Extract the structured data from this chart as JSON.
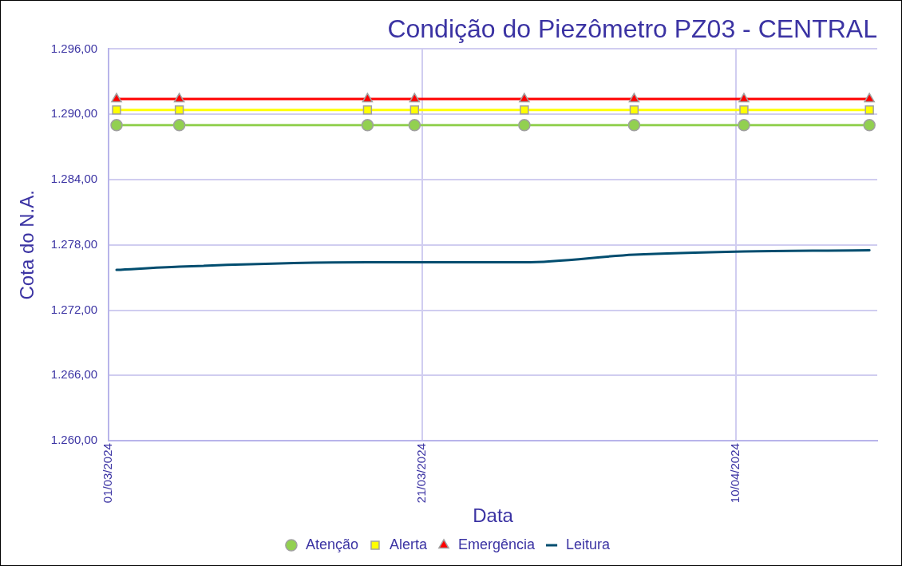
{
  "chart_data": {
    "type": "line",
    "title": "Condição do Piezômetro PZ03 - CENTRAL",
    "xlabel": "Data",
    "ylabel": "Cota do N.A.",
    "x": [
      "2024-03-01T12:00",
      "2024-03-05T12:00",
      "2024-03-17T12:00",
      "2024-03-20T12:00",
      "2024-03-27T12:00",
      "2024-04-03T12:00",
      "2024-04-10T12:00",
      "2024-04-18T12:00"
    ],
    "series": [
      {
        "name": "Atenção",
        "color": "#92d050",
        "marker": "circle",
        "values": [
          1289.0,
          1289.0,
          1289.0,
          1289.0,
          1289.0,
          1289.0,
          1289.0,
          1289.0
        ]
      },
      {
        "name": "Alerta",
        "color": "#ffff00",
        "marker": "square",
        "values": [
          1290.4,
          1290.4,
          1290.4,
          1290.4,
          1290.4,
          1290.4,
          1290.4,
          1290.4
        ]
      },
      {
        "name": "Emergência",
        "color": "#ff0000",
        "marker": "triangle",
        "values": [
          1291.4,
          1291.4,
          1291.4,
          1291.4,
          1291.4,
          1291.4,
          1291.4,
          1291.4
        ]
      },
      {
        "name": "Leitura",
        "color": "#004d6f",
        "marker": "none",
        "values": [
          1275.7,
          1276.0,
          1276.4,
          1276.4,
          1276.4,
          1277.1,
          1277.4,
          1277.5
        ]
      }
    ],
    "xlim": [
      "2024-03-01",
      "2024-04-19"
    ],
    "xticks": [
      {
        "value": "2024-03-01",
        "label": "01/03/2024"
      },
      {
        "value": "2024-03-21",
        "label": "21/03/2024"
      },
      {
        "value": "2024-04-10",
        "label": "10/04/2024"
      }
    ],
    "ylim": [
      1260,
      1296
    ],
    "yticks": [
      {
        "value": 1260,
        "label": "1.260,00"
      },
      {
        "value": 1266,
        "label": "1.266,00"
      },
      {
        "value": 1272,
        "label": "1.272,00"
      },
      {
        "value": 1278,
        "label": "1.278,00"
      },
      {
        "value": 1284,
        "label": "1.284,00"
      },
      {
        "value": 1290,
        "label": "1.290,00"
      },
      {
        "value": 1296,
        "label": "1.296,00"
      }
    ],
    "grid": true,
    "legend": "bottom",
    "line_style": "solid"
  }
}
